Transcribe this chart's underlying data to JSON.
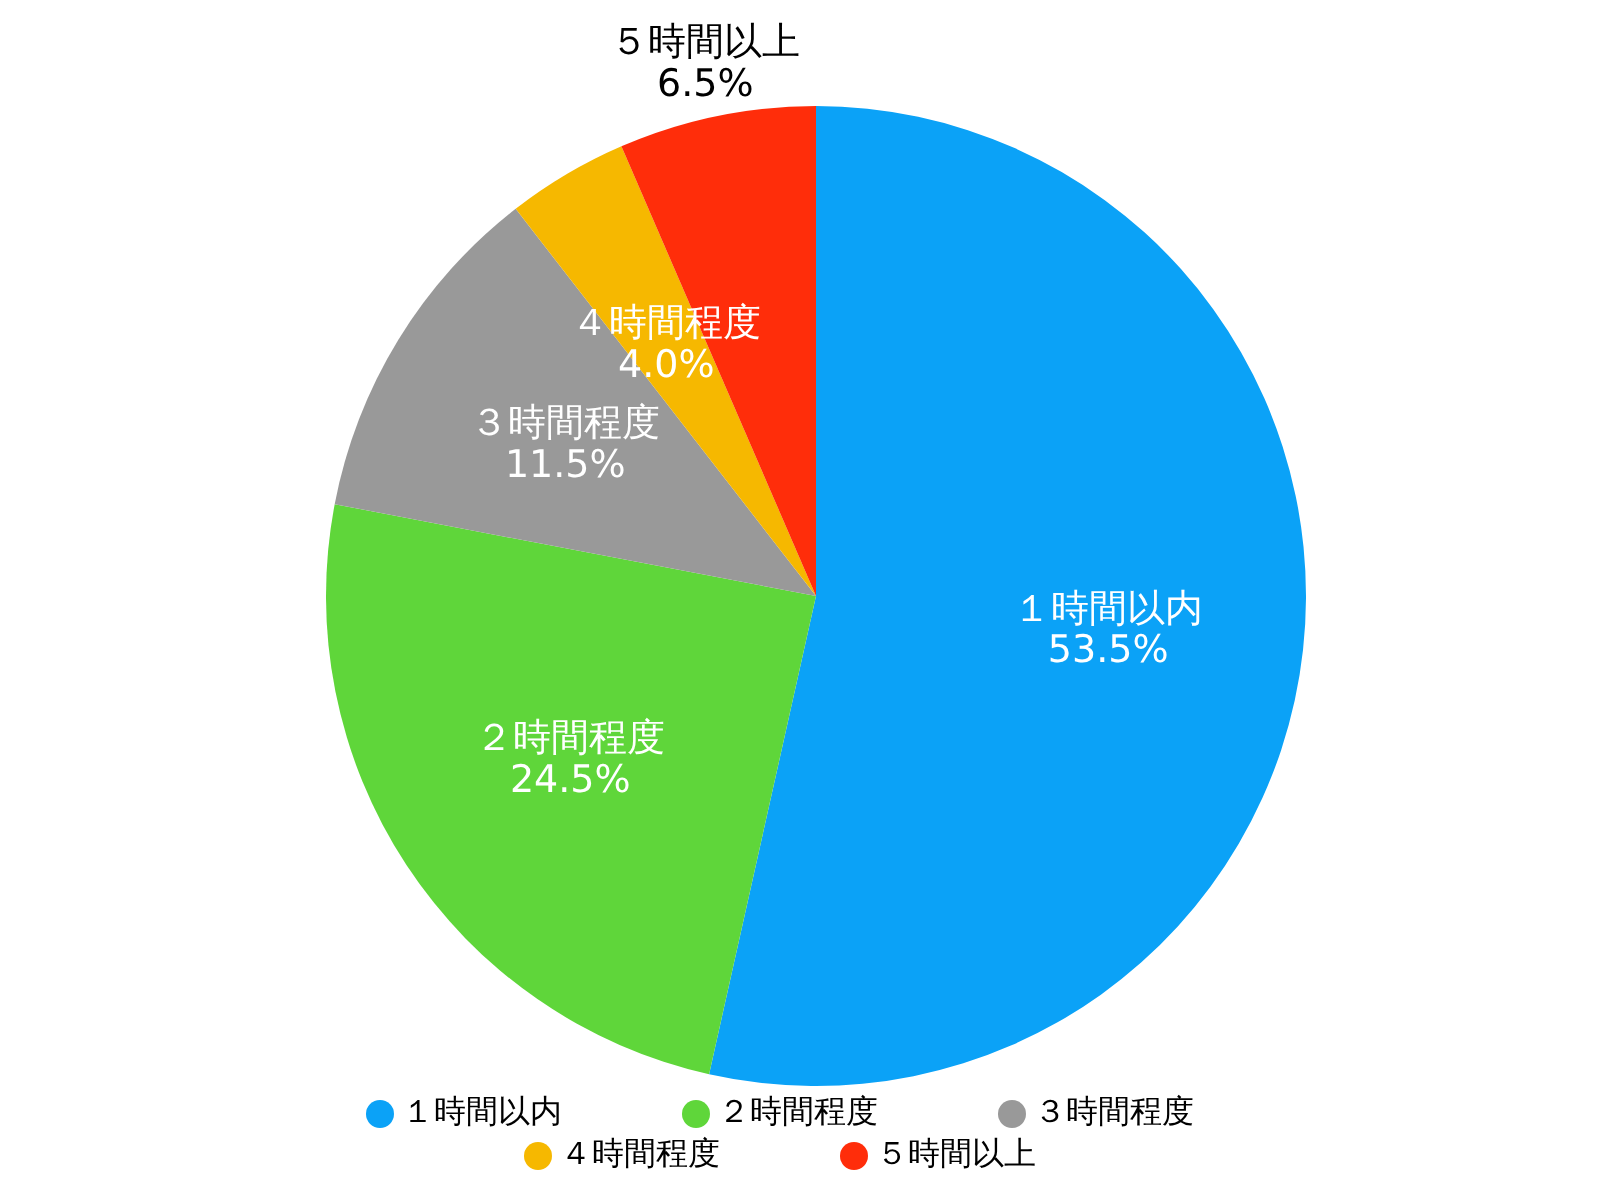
{
  "chart_data": {
    "type": "pie",
    "categories": [
      "１時間以内",
      "２時間程度",
      "３時間程度",
      "４時間程度",
      "５時間以上"
    ],
    "values": [
      53.5,
      24.5,
      11.5,
      4.0,
      6.5
    ],
    "value_labels": [
      "53.5%",
      "24.5%",
      "11.5%",
      "4.0%",
      "6.5%"
    ],
    "colors": [
      "#0ba2f7",
      "#5fd63a",
      "#999999",
      "#f6b800",
      "#ff2d0a"
    ],
    "legend": "bottom"
  }
}
